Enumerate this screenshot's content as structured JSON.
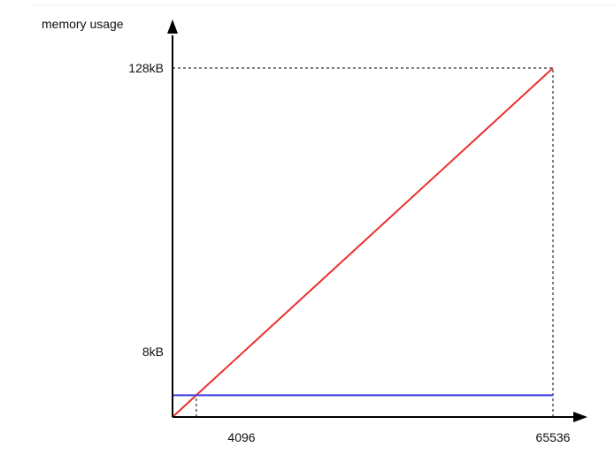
{
  "chart_data": {
    "type": "line",
    "ylabel": "memory usage",
    "xlabel": "",
    "x_ticks": [
      "4096",
      "65536"
    ],
    "y_ticks": [
      "8kB",
      "128kB"
    ],
    "xlim": [
      0,
      65536
    ],
    "ylim_kB": [
      0,
      128
    ],
    "series": [
      {
        "color": "#e8312e",
        "points": [
          [
            0,
            0
          ],
          [
            65536,
            128
          ]
        ]
      },
      {
        "color": "#3b3be0",
        "points": [
          [
            0,
            8
          ],
          [
            65536,
            8
          ]
        ]
      }
    ],
    "reference_lines": [
      {
        "type": "vertical",
        "x": 4096
      },
      {
        "type": "vertical",
        "x": 65536
      },
      {
        "type": "horizontal",
        "y": 128
      }
    ]
  }
}
